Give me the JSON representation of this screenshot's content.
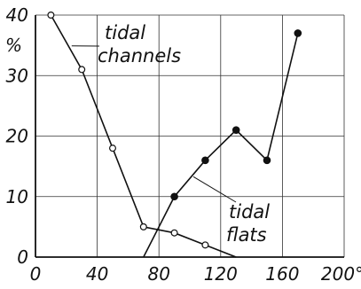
{
  "chart_data": {
    "type": "line",
    "x_ticks": [
      0,
      40,
      80,
      120,
      160,
      200
    ],
    "y_ticks": [
      0,
      10,
      20,
      30,
      40
    ],
    "x_tick_labels": [
      "0",
      "40",
      "80",
      "120",
      "160",
      "200°"
    ],
    "y_tick_labels": [
      "0",
      "10",
      "20",
      "30",
      "40"
    ],
    "y_unit": "%",
    "xlim": [
      0,
      200
    ],
    "ylim": [
      0,
      40
    ],
    "grid": true,
    "series": [
      {
        "name": "tidal channels",
        "marker": "open-circle",
        "x": [
          10,
          30,
          50,
          70,
          90,
          110,
          130
        ],
        "y": [
          40,
          31,
          18,
          5,
          4,
          2,
          0
        ]
      },
      {
        "name": "tidal flats",
        "marker": "filled-circle",
        "x": [
          70,
          90,
          110,
          130,
          150,
          170
        ],
        "y": [
          0,
          10,
          16,
          21,
          16,
          37
        ]
      }
    ],
    "annotations": [
      {
        "lines": [
          "tidal",
          "channels"
        ],
        "series": 0
      },
      {
        "lines": [
          "tidal",
          "flats"
        ],
        "series": 1
      }
    ]
  }
}
